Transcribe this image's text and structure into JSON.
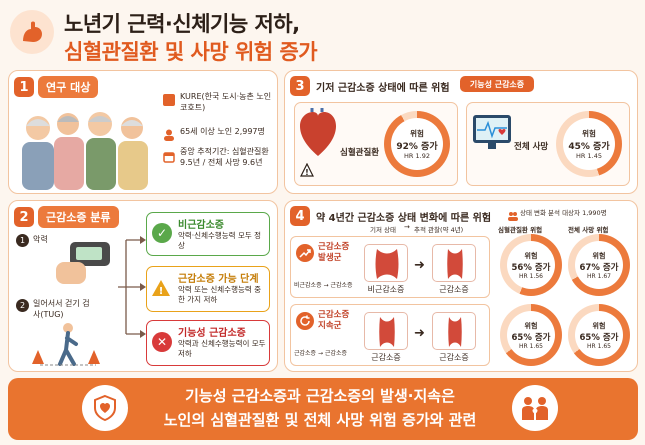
{
  "title": {
    "line1": "노년기 근력·신체기능 저하,",
    "line2": "심혈관질환 및 사망 위험 증가"
  },
  "s1": {
    "num": "1",
    "label": "연구 대상",
    "cohort": "KURE(한국 도시·농촌 노인 코호트)",
    "participants": "65세 이상 노인 2,997명",
    "followup": "중앙 추적기간: 심혈관질환 9.5년 / 전체 사망 9.6년"
  },
  "s2": {
    "num": "2",
    "label": "근감소증 분류",
    "grip": "악력",
    "tug": "일어서서 걷기 검사(TUG)",
    "normal": {
      "title": "비근감소증",
      "desc": "악력·신체수행능력 모두 정상"
    },
    "mild": {
      "title": "근감소증 가능 단계",
      "desc": "악력 또는 신체수행능력 중 한 가지 저하"
    },
    "func": {
      "title": "기능성 근감소증",
      "desc": "악력과 신체수행능력이 모두 저하"
    }
  },
  "s3": {
    "num": "3",
    "label": "기저 근감소증 상태에 따른 위험",
    "tag": "기능성 근감소증",
    "cvd": {
      "name": "심혈관질환",
      "risk": "위험",
      "pct": "92% 증가",
      "hr": "HR 1.92",
      "fill": 0.92
    },
    "death": {
      "name": "전체 사망",
      "risk": "위험",
      "pct": "45% 증가",
      "hr": "HR 1.45",
      "fill": 0.45
    }
  },
  "s4": {
    "num": "4",
    "label": "약 4년간 근감소증 상태 변화에 따른 위험",
    "subjects": "상태 변화 분석 대상자 1,990명",
    "col_base": "기저 상태",
    "col_follow": "추적 관찰(약 4년)",
    "col_cvd": "심혈관질환 위험",
    "col_death": "전체 사망 위험",
    "row1": {
      "title": "근감소증 발생군",
      "path": "비근감소증 → 근감소증",
      "from": "비근감소증",
      "to": "근감소증",
      "cvd": {
        "risk": "위험",
        "pct": "56% 증가",
        "hr": "HR 1.56",
        "fill": 0.56
      },
      "death": {
        "risk": "위험",
        "pct": "67% 증가",
        "hr": "HR 1.67",
        "fill": 0.67
      }
    },
    "row2": {
      "title": "근감소증 지속군",
      "path": "근감소증 → 근감소증",
      "from": "근감소증",
      "to": "근감소증",
      "cvd": {
        "risk": "위험",
        "pct": "65% 증가",
        "hr": "HR 1.65",
        "fill": 0.65
      },
      "death": {
        "risk": "위험",
        "pct": "65% 증가",
        "hr": "HR 1.65",
        "fill": 0.65
      }
    }
  },
  "footer": {
    "line1": "기능성 근감소증과 근감소증의 발생·지속은",
    "line2": "노인의 심혈관질환 및 전체 사망 위험 증가와 관련"
  },
  "colors": {
    "accent": "#e2622a",
    "green": "#5aa84a",
    "yellow": "#e9a21a",
    "red": "#d83a3a"
  }
}
